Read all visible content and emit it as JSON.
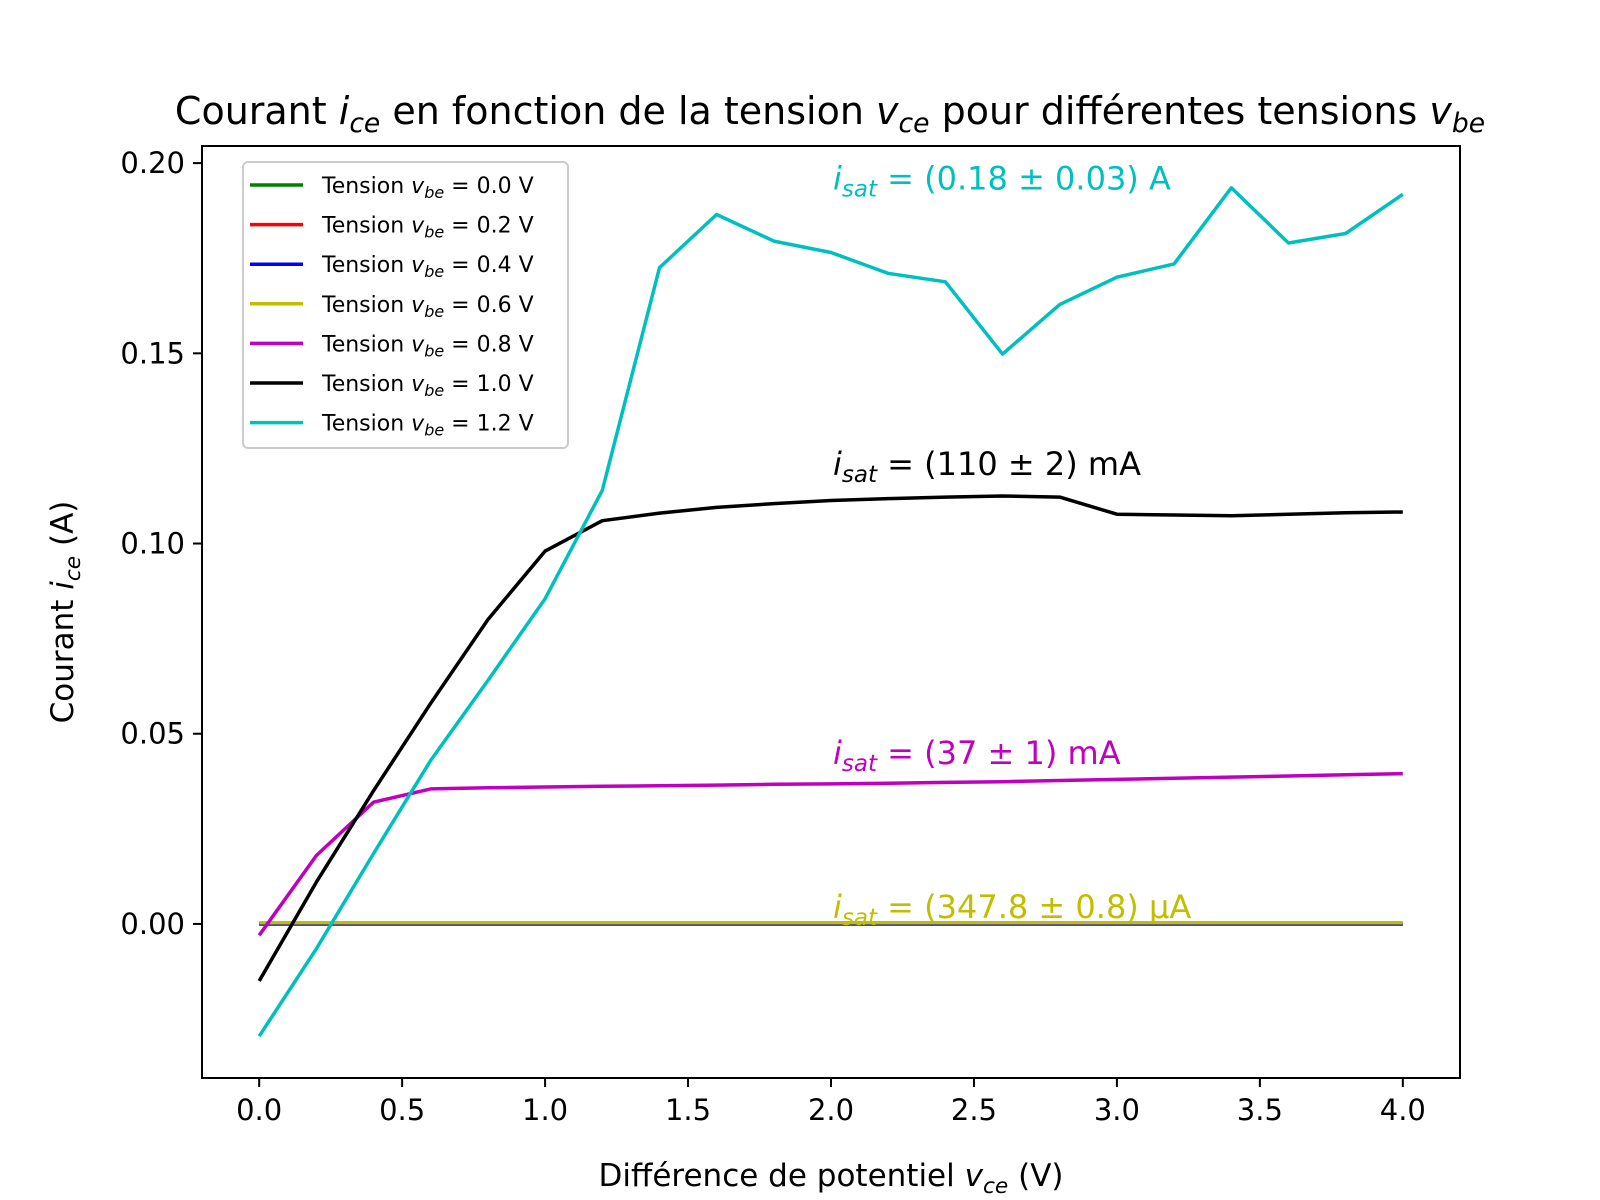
{
  "chart_data": {
    "type": "line",
    "title": {
      "prefix": "Courant ",
      "var1": "i",
      "sub1": "ce",
      "middle": " en fonction de la tension ",
      "var2": "v",
      "sub2": "ce",
      "suffix": " pour différentes tensions ",
      "var3": "v",
      "sub3": "be"
    },
    "xlabel": {
      "prefix": "Différence de potentiel ",
      "var": "v",
      "sub": "ce",
      "suffix": " (V)"
    },
    "ylabel": {
      "prefix": "Courant ",
      "var": "i",
      "sub": "ce",
      "suffix": " (A)"
    },
    "xlim": [
      -0.2,
      4.2
    ],
    "ylim": [
      -0.0405,
      0.2045
    ],
    "xticks": [
      0.0,
      0.5,
      1.0,
      1.5,
      2.0,
      2.5,
      3.0,
      3.5,
      4.0
    ],
    "xtick_labels": [
      "0.0",
      "0.5",
      "1.0",
      "1.5",
      "2.0",
      "2.5",
      "3.0",
      "3.5",
      "4.0"
    ],
    "yticks": [
      0.0,
      0.05,
      0.1,
      0.15,
      0.2
    ],
    "ytick_labels": [
      "0.00",
      "0.05",
      "0.10",
      "0.15",
      "0.20"
    ],
    "grid": false,
    "legend_position": "top-left",
    "x": [
      0.0,
      0.2,
      0.4,
      0.6,
      0.8,
      1.0,
      1.2,
      1.4,
      1.6,
      1.8,
      2.0,
      2.2,
      2.4,
      2.6,
      2.8,
      3.0,
      3.2,
      3.4,
      3.6,
      3.8,
      4.0
    ],
    "series": [
      {
        "name": "Tension ",
        "vbe": "0.0 V",
        "color": "#008000",
        "values": [
          0,
          0,
          0,
          0,
          0,
          0,
          0,
          0,
          0,
          0,
          0,
          0,
          0,
          0,
          0,
          0,
          0,
          0,
          0,
          0,
          0
        ]
      },
      {
        "name": "Tension ",
        "vbe": "0.2 V",
        "color": "#ff0000",
        "values": [
          0,
          0,
          0,
          0,
          0,
          0,
          0,
          0,
          0,
          0,
          0,
          0,
          0,
          0,
          0,
          0,
          0,
          0,
          0,
          0,
          0
        ]
      },
      {
        "name": "Tension ",
        "vbe": "0.4 V",
        "color": "#0000ff",
        "values": [
          0,
          0,
          0,
          0,
          0,
          0,
          0,
          0,
          0,
          0,
          0,
          0,
          0,
          0,
          0,
          0,
          0,
          0,
          0,
          0,
          0
        ]
      },
      {
        "name": "Tension ",
        "vbe": "0.6 V",
        "color": "#bfbf00",
        "values": [
          0.0003,
          0.0003,
          0.0003,
          0.0003,
          0.0003,
          0.0003,
          0.0003,
          0.0003,
          0.0003,
          0.0003,
          0.0003,
          0.0003,
          0.0003,
          0.0003,
          0.0003,
          0.0003,
          0.0003,
          0.0003,
          0.0003,
          0.0003,
          0.0003
        ]
      },
      {
        "name": "Tension ",
        "vbe": "0.8 V",
        "color": "#bf00bf",
        "values": [
          -0.003,
          0.018,
          0.032,
          0.0355,
          0.0358,
          0.036,
          0.0362,
          0.0363,
          0.0365,
          0.0367,
          0.0368,
          0.037,
          0.0372,
          0.0374,
          0.0377,
          0.038,
          0.0383,
          0.0386,
          0.0389,
          0.0392,
          0.0395
        ]
      },
      {
        "name": "Tension ",
        "vbe": "1.0 V",
        "color": "#000000",
        "values": [
          -0.015,
          0.011,
          0.035,
          0.058,
          0.08,
          0.098,
          0.106,
          0.108,
          0.1095,
          0.1105,
          0.1113,
          0.1118,
          0.1122,
          0.1125,
          0.1122,
          0.1077,
          0.1075,
          0.1073,
          0.1077,
          0.1081,
          0.1083
        ]
      },
      {
        "name": "Tension ",
        "vbe": "1.2 V",
        "color": "#00bfbf",
        "values": [
          -0.0295,
          -0.0065,
          0.0185,
          0.043,
          0.064,
          0.0855,
          0.114,
          0.1725,
          0.1865,
          0.1795,
          0.1765,
          0.171,
          0.1688,
          0.1498,
          0.1628,
          0.17,
          0.1735,
          0.1935,
          0.179,
          0.1815,
          0.1918
        ]
      }
    ],
    "annotations": [
      {
        "x": 2.0,
        "y": 0.193,
        "var": "i",
        "sub": "sat",
        "text": " = (0.18 ± 0.03) A",
        "color": "#00bfbf"
      },
      {
        "x": 2.0,
        "y": 0.118,
        "var": "i",
        "sub": "sat",
        "text": " = (110 ± 2) mA",
        "color": "#000000"
      },
      {
        "x": 2.0,
        "y": 0.042,
        "var": "i",
        "sub": "sat",
        "text": " = (37 ± 1) mA",
        "color": "#bf00bf"
      },
      {
        "x": 2.0,
        "y": 0.0015,
        "var": "i",
        "sub": "sat",
        "text": " = (347.8 ± 0.8) µA",
        "color": "#bfbf00"
      }
    ]
  }
}
